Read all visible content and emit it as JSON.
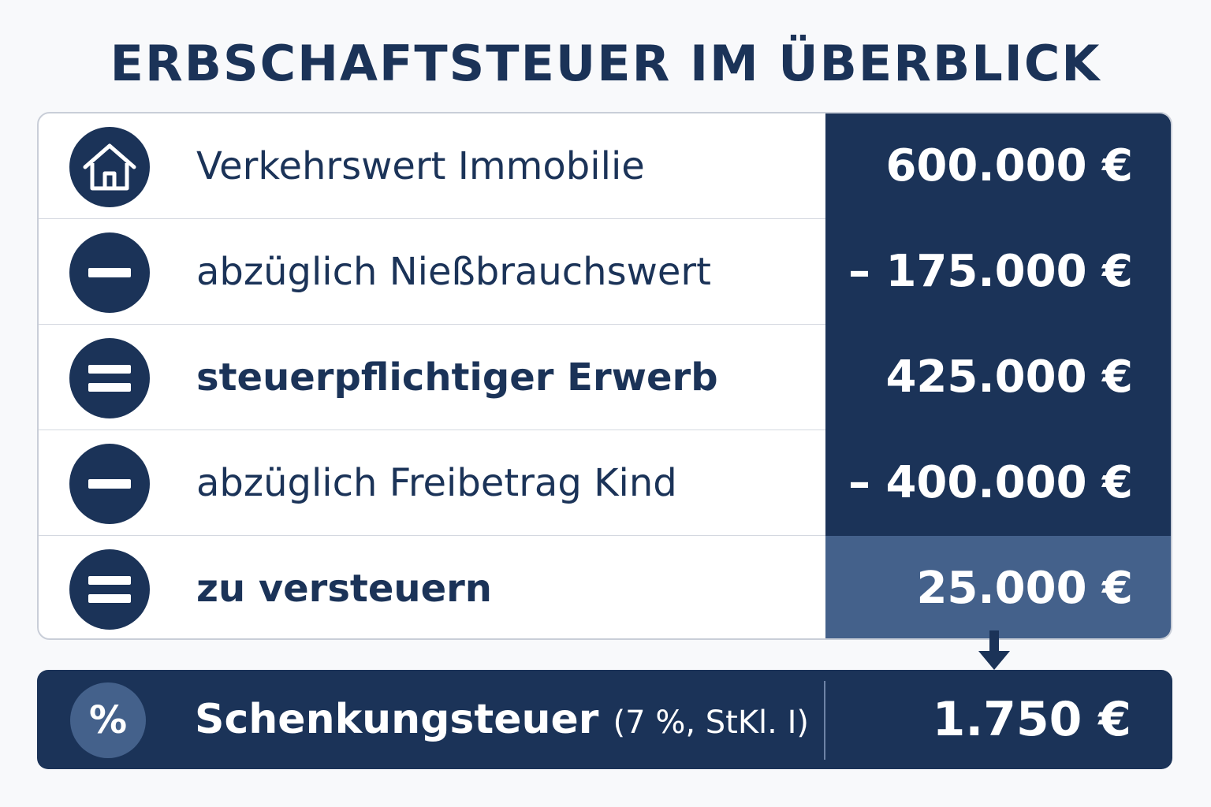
{
  "title": "ERBSCHAFTSTEUER IM ÜBERBLICK",
  "rows": [
    {
      "icon": "house-icon",
      "label": "Verkehrswert Immobilie",
      "value": "600.000 €"
    },
    {
      "icon": "minus-icon",
      "label": "abzüglich Nießbrauchswert",
      "value": "– 175.000 €"
    },
    {
      "icon": "equals-icon",
      "label": "steuerpflichtiger Erwerb",
      "value": "425.000 €"
    },
    {
      "icon": "minus-icon",
      "label": "abzüglich Freibetrag Kind",
      "value": "– 400.000 €"
    },
    {
      "icon": "equals-icon",
      "label": "zu versteuern",
      "value": "25.000 €"
    }
  ],
  "result": {
    "icon_text": "%",
    "label": "Schenkungsteuer",
    "note": "(7 %, StKl. I)",
    "value": "1.750 €"
  },
  "colors": {
    "navy": "#1b3358",
    "highlight": "#44618b",
    "background": "#f8f9fb"
  }
}
